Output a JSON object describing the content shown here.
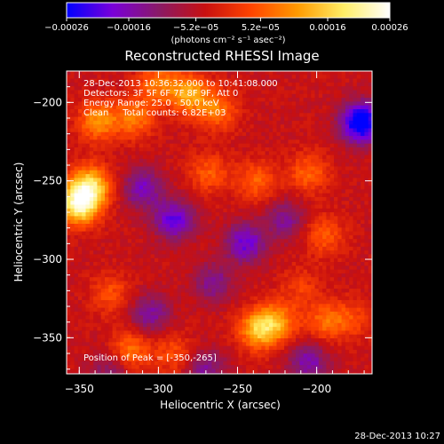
{
  "chart_data": {
    "type": "heatmap",
    "title": "Reconstructed RHESSI Image",
    "xlabel": "Heliocentric X (arcsec)",
    "ylabel": "Heliocentric Y (arcsec)",
    "xlim": [
      -358,
      -165
    ],
    "ylim": [
      -373,
      -180
    ],
    "x_ticks": [
      -350,
      -300,
      -250,
      -200
    ],
    "x_tick_labels": [
      "−350",
      "−300",
      "−250",
      "−200"
    ],
    "y_ticks": [
      -200,
      -250,
      -300,
      -350
    ],
    "y_tick_labels": [
      "−200",
      "−250",
      "−300",
      "−350"
    ],
    "colorbar": {
      "range": [
        -0.00026,
        0.00026
      ],
      "ticks": [
        -0.00026,
        -0.00016,
        -5.2e-05,
        5.2e-05,
        0.00016,
        0.00026
      ],
      "tick_labels": [
        "−0.00026",
        "−0.00016",
        "−5.2e−05",
        "5.2e−05",
        "0.00016",
        "0.00026"
      ],
      "units_label": "(photons cm⁻² s⁻¹ asec⁻²)",
      "colors": [
        "#0000ff",
        "#7a00d8",
        "#8a1a66",
        "#c81010",
        "#ff4400",
        "#ff9a00",
        "#ffee66",
        "#ffffff"
      ]
    },
    "annotations": {
      "time_range": "28-Dec-2013 10:36:32.000 to 10:41:08.000",
      "detectors": "Detectors: 3F 5F 6F 7F 8F 9F, Att 0",
      "energy": "Energy Range: 25.0 - 50.0 keV",
      "clean": "Clean     Total counts: 6.82E+03",
      "peak": "Position of Peak = [-350,-265]"
    },
    "peak_position": [
      -350,
      -265
    ],
    "sources": [
      {
        "x": -350,
        "y": -265,
        "v": 0.00026
      },
      {
        "x": -343,
        "y": -253,
        "v": 0.0002
      },
      {
        "x": -338,
        "y": -212,
        "v": 0.00014
      },
      {
        "x": -315,
        "y": -210,
        "v": 0.00012
      },
      {
        "x": -280,
        "y": -195,
        "v": 0.00016
      },
      {
        "x": -300,
        "y": -188,
        "v": 0.00012
      },
      {
        "x": -262,
        "y": -205,
        "v": 0.00011
      },
      {
        "x": -268,
        "y": -245,
        "v": 9e-05
      },
      {
        "x": -238,
        "y": -250,
        "v": 0.0001
      },
      {
        "x": -205,
        "y": -245,
        "v": 0.0001
      },
      {
        "x": -195,
        "y": -285,
        "v": 9e-05
      },
      {
        "x": -237,
        "y": -345,
        "v": 0.00017
      },
      {
        "x": -225,
        "y": -340,
        "v": 0.00013
      },
      {
        "x": -330,
        "y": -322,
        "v": 8e-05
      },
      {
        "x": -318,
        "y": -358,
        "v": 0.00012
      },
      {
        "x": -290,
        "y": -360,
        "v": 8e-05
      },
      {
        "x": -195,
        "y": -340,
        "v": 0.0001
      },
      {
        "x": -178,
        "y": -338,
        "v": 7e-05
      },
      {
        "x": -210,
        "y": -318,
        "v": 6e-05
      },
      {
        "x": -172,
        "y": -213,
        "v": -0.00026
      },
      {
        "x": -290,
        "y": -275,
        "v": -0.00016
      },
      {
        "x": -245,
        "y": -290,
        "v": -0.00015
      },
      {
        "x": -310,
        "y": -255,
        "v": -0.00013
      },
      {
        "x": -265,
        "y": -315,
        "v": -0.0001
      },
      {
        "x": -305,
        "y": -335,
        "v": -0.00011
      },
      {
        "x": -270,
        "y": -370,
        "v": -0.0001
      },
      {
        "x": -205,
        "y": -365,
        "v": -0.00012
      },
      {
        "x": -330,
        "y": -370,
        "v": -8e-05
      },
      {
        "x": -220,
        "y": -275,
        "v": -0.0001
      }
    ]
  },
  "footer": {
    "timestamp": "28-Dec-2013 10:27"
  }
}
